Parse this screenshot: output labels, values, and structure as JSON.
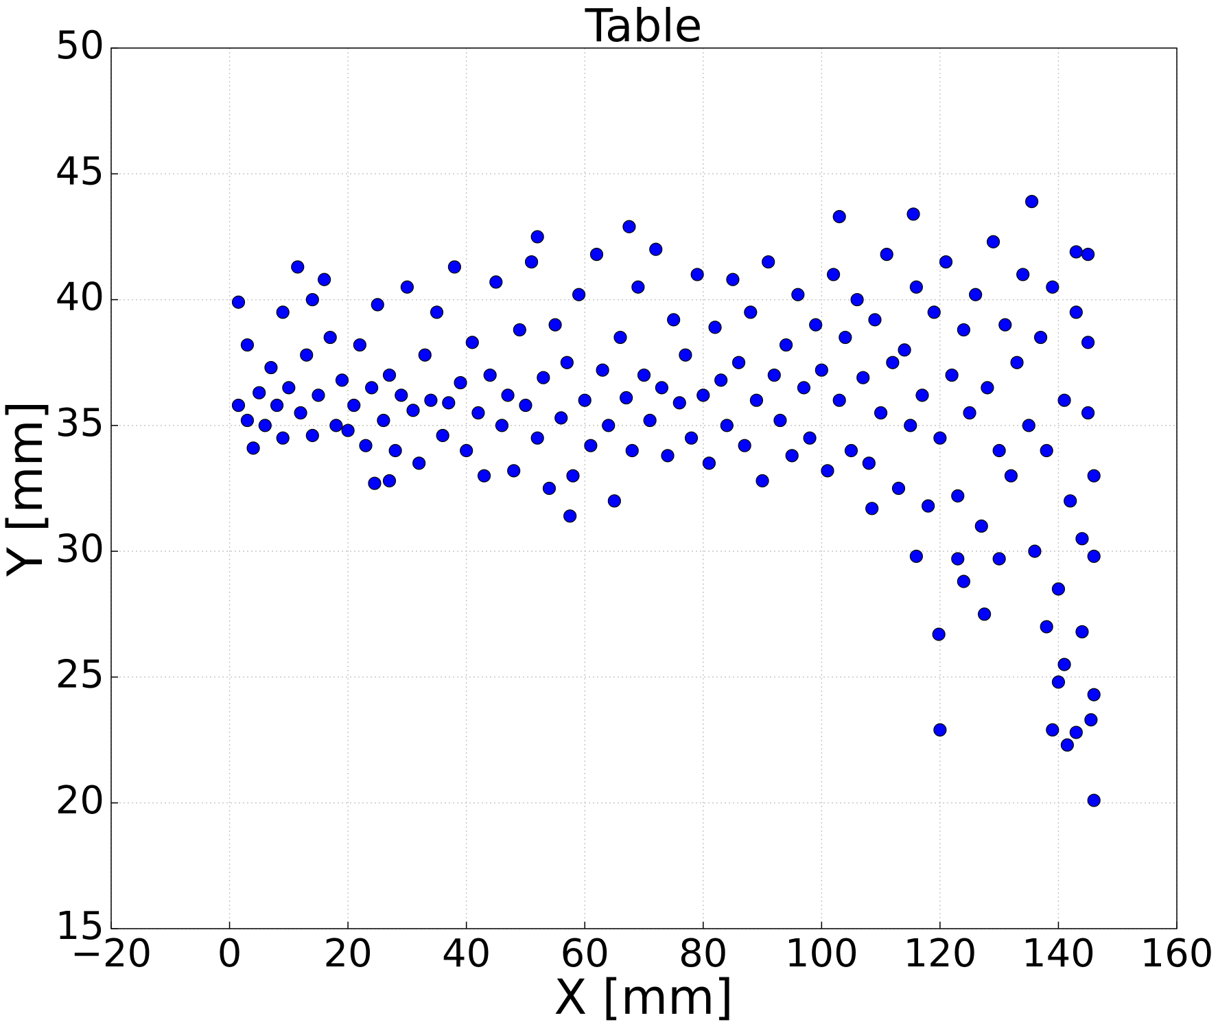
{
  "chart_data": {
    "type": "scatter",
    "title": "Table",
    "x_label": "X [mm]",
    "y_label": "Y [mm]",
    "color": "#0000ff",
    "grid": true,
    "xlim": [
      -20,
      160
    ],
    "xticks": [
      {
        "value": -20,
        "label": "−20"
      },
      0,
      20,
      40,
      60,
      80,
      100,
      120,
      140,
      160
    ],
    "ylim": [
      15,
      50
    ],
    "yticks": [
      15,
      20,
      25,
      30,
      35,
      40,
      45,
      50
    ],
    "x": [
      120,
      119.8,
      146,
      141.5,
      139,
      143,
      145.5,
      146,
      127.5,
      57.5,
      135.5,
      115.5,
      103,
      67.5,
      52,
      11.5,
      1.5,
      3,
      1.5,
      4,
      24.5,
      27,
      108.5,
      116,
      123,
      124,
      130,
      3,
      5,
      6,
      8,
      9,
      10,
      12,
      13,
      14,
      15,
      16,
      17,
      18,
      19,
      20,
      7,
      9,
      14,
      21,
      22,
      23,
      24,
      25,
      26,
      27,
      28,
      29,
      30,
      31,
      32,
      33,
      34,
      35,
      36,
      37,
      38,
      39,
      40,
      41,
      42,
      43,
      44,
      45,
      46,
      47,
      48,
      49,
      50,
      51,
      52,
      53,
      54,
      55,
      56,
      57,
      58,
      59,
      60,
      61,
      62,
      63,
      64,
      65,
      66,
      67,
      68,
      69,
      70,
      71,
      72,
      73,
      74,
      75,
      76,
      77,
      78,
      79,
      80,
      81,
      82,
      83,
      84,
      85,
      86,
      87,
      88,
      89,
      90,
      91,
      92,
      93,
      94,
      95,
      96,
      97,
      98,
      99,
      100,
      101,
      102,
      103,
      104,
      105,
      106,
      107,
      108,
      109,
      110,
      111,
      112,
      113,
      114,
      115,
      116,
      117,
      118,
      119,
      120,
      121,
      122,
      123,
      124,
      125,
      126,
      127,
      128,
      129,
      130,
      131,
      132,
      133,
      134,
      135,
      136,
      137,
      138,
      139,
      140,
      141,
      142,
      143,
      144,
      145,
      146,
      145,
      144,
      143,
      141,
      146,
      138,
      140,
      145
    ],
    "values": [
      22.9,
      26.7,
      20.1,
      22.3,
      22.9,
      22.8,
      23.3,
      24.3,
      27.5,
      31.4,
      43.9,
      43.4,
      43.3,
      42.9,
      42.5,
      41.3,
      39.9,
      38.2,
      35.8,
      34.1,
      32.7,
      32.8,
      31.7,
      29.8,
      29.7,
      28.8,
      29.7,
      35.2,
      36.3,
      35.0,
      35.8,
      34.5,
      36.5,
      35.5,
      37.8,
      34.6,
      36.2,
      40.8,
      38.5,
      35.0,
      36.8,
      34.8,
      37.3,
      39.5,
      40.0,
      35.8,
      38.2,
      34.2,
      36.5,
      39.8,
      35.2,
      37.0,
      34.0,
      36.2,
      40.5,
      35.6,
      33.5,
      37.8,
      36.0,
      39.5,
      34.6,
      35.9,
      41.3,
      36.7,
      34.0,
      38.3,
      35.5,
      33.0,
      37.0,
      40.7,
      35.0,
      36.2,
      33.2,
      38.8,
      35.8,
      41.5,
      34.5,
      36.9,
      32.5,
      39.0,
      35.3,
      37.5,
      33.0,
      40.2,
      36.0,
      34.2,
      41.8,
      37.2,
      35.0,
      32.0,
      38.5,
      36.1,
      34.0,
      40.5,
      37.0,
      35.2,
      42.0,
      36.5,
      33.8,
      39.2,
      35.9,
      37.8,
      34.5,
      41.0,
      36.2,
      33.5,
      38.9,
      36.8,
      35.0,
      40.8,
      37.5,
      34.2,
      39.5,
      36.0,
      32.8,
      41.5,
      37.0,
      35.2,
      38.2,
      33.8,
      40.2,
      36.5,
      34.5,
      39.0,
      37.2,
      33.2,
      41.0,
      36.0,
      38.5,
      34.0,
      40.0,
      36.9,
      33.5,
      39.2,
      35.5,
      41.8,
      37.5,
      32.5,
      38.0,
      35.0,
      40.5,
      36.2,
      31.8,
      39.5,
      34.5,
      41.5,
      37.0,
      32.2,
      38.8,
      35.5,
      40.2,
      31.0,
      36.5,
      42.3,
      34.0,
      39.0,
      33.0,
      37.5,
      41.0,
      35.0,
      30.0,
      38.5,
      34.0,
      40.5,
      28.5,
      36.0,
      32.0,
      39.5,
      30.5,
      35.5,
      33.0,
      38.3,
      26.8,
      41.9,
      25.5,
      29.8,
      27.0,
      24.8,
      41.8
    ]
  }
}
